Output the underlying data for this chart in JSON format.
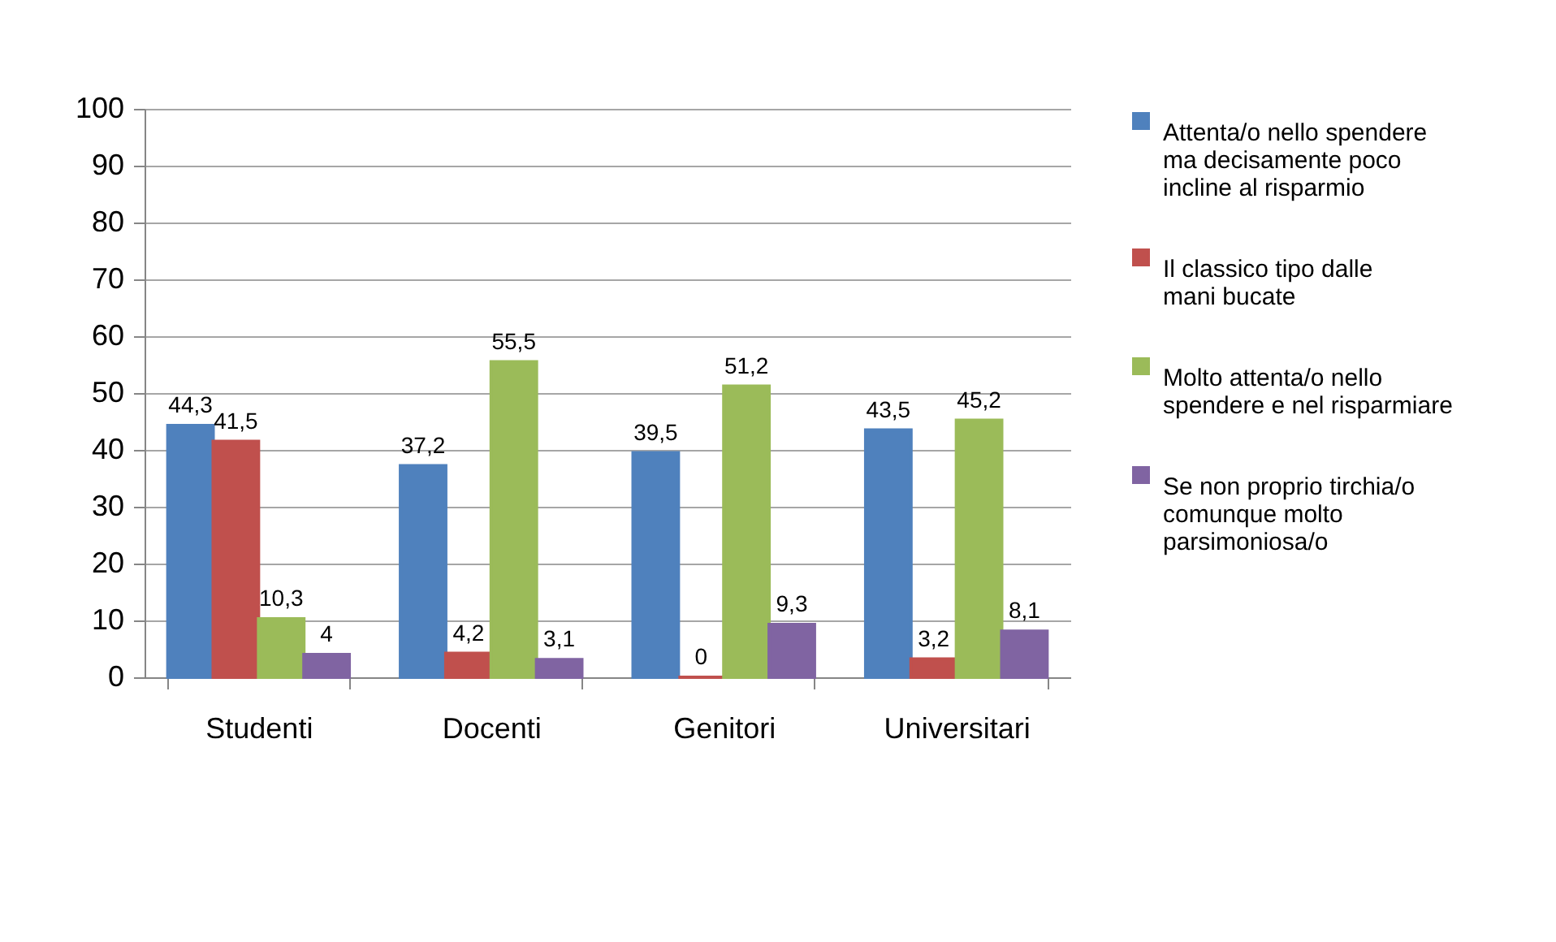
{
  "chart_data": {
    "type": "bar",
    "categories": [
      "Studenti",
      "Docenti",
      "Genitori",
      "Universitari"
    ],
    "series": [
      {
        "name": "Attenta/o nello spendere ma decisamente poco incline al risparmio",
        "color": "#4f81bd",
        "values": [
          44.3,
          37.2,
          39.5,
          43.5
        ],
        "value_labels": [
          "44,3",
          "37,2",
          "39,5",
          "43,5"
        ]
      },
      {
        "name": "Il classico tipo dalle mani bucate",
        "color": "#c0504d",
        "values": [
          41.5,
          4.2,
          0,
          3.2
        ],
        "value_labels": [
          "41,5",
          "4,2",
          "0",
          "3,2"
        ]
      },
      {
        "name": "Molto attenta/o nello spendere e nel risparmiare",
        "color": "#9bbb59",
        "values": [
          10.3,
          55.5,
          51.2,
          45.2
        ],
        "value_labels": [
          "10,3",
          "55,5",
          "51,2",
          "45,2"
        ]
      },
      {
        "name": "Se non proprio tirchia/o comunque molto parsimoniosa/o",
        "color": "#8064a2",
        "values": [
          4,
          3.1,
          9.3,
          8.1
        ],
        "value_labels": [
          "4",
          "3,1",
          "9,3",
          "8,1"
        ]
      }
    ],
    "ylim": [
      0,
      100
    ],
    "yticks": [
      0,
      10,
      20,
      30,
      40,
      50,
      60,
      70,
      80,
      90,
      100
    ],
    "grid": "y",
    "legend": "right"
  }
}
